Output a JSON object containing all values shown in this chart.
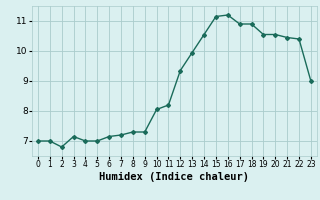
{
  "x": [
    0,
    1,
    2,
    3,
    4,
    5,
    6,
    7,
    8,
    9,
    10,
    11,
    12,
    13,
    14,
    15,
    16,
    17,
    18,
    19,
    20,
    21,
    22,
    23
  ],
  "y": [
    7.0,
    7.0,
    6.8,
    7.15,
    7.0,
    7.0,
    7.15,
    7.2,
    7.3,
    7.3,
    8.05,
    8.2,
    9.35,
    9.95,
    10.55,
    11.15,
    11.2,
    10.9,
    10.9,
    10.55,
    10.55,
    10.45,
    10.4,
    9.0
  ],
  "line_color": "#1a6b5a",
  "marker": "D",
  "marker_size": 2.0,
  "bg_color": "#daf0f0",
  "grid_color": "#aacccc",
  "xlabel": "Humidex (Indice chaleur)",
  "xlim": [
    -0.5,
    23.5
  ],
  "ylim": [
    6.5,
    11.5
  ],
  "yticks": [
    7,
    8,
    9,
    10,
    11
  ],
  "xticks": [
    0,
    1,
    2,
    3,
    4,
    5,
    6,
    7,
    8,
    9,
    10,
    11,
    12,
    13,
    14,
    15,
    16,
    17,
    18,
    19,
    20,
    21,
    22,
    23
  ],
  "xlabel_fontsize": 7.5,
  "tick_fontsize": 6.5,
  "xtick_fontsize": 5.5,
  "line_width": 1.0
}
